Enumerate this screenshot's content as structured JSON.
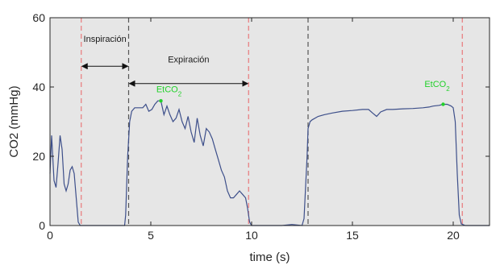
{
  "chart_data": {
    "type": "line",
    "xlabel": "time (s)",
    "ylabel": "CO2 (mmHg)",
    "xlim": [
      0,
      21.8
    ],
    "ylim": [
      0,
      60
    ],
    "xticks": [
      0,
      5,
      10,
      15,
      20
    ],
    "yticks": [
      0,
      20,
      40,
      60
    ],
    "grid": false,
    "background": "#e6e6e6",
    "colors": {
      "signal": "#3d4f8a",
      "red_marker": "#e8787a",
      "black_marker": "#555555",
      "etco2": "#22d12a",
      "annotation": "#111111"
    },
    "series": [
      {
        "x": [
          0.0,
          0.08,
          0.2,
          0.3,
          0.4,
          0.5,
          0.6,
          0.7,
          0.8,
          0.9,
          1.0,
          1.1,
          1.2,
          1.3,
          1.4,
          1.5,
          1.6,
          1.7,
          1.8,
          1.9,
          2.0,
          3.0,
          3.7,
          3.75,
          3.85,
          3.95,
          4.05,
          4.2,
          4.4,
          4.6,
          4.75,
          4.9,
          5.05,
          5.2,
          5.35,
          5.5,
          5.65,
          5.8,
          5.95,
          6.1,
          6.25,
          6.4,
          6.55,
          6.7,
          6.85,
          7.0,
          7.15,
          7.3,
          7.45,
          7.6,
          7.75,
          7.9,
          8.05,
          8.2,
          8.35,
          8.5,
          8.65,
          8.8,
          8.95,
          9.1,
          9.25,
          9.4,
          9.55,
          9.7,
          9.8,
          9.9,
          10.0,
          10.1,
          10.3,
          11.5,
          12.0,
          12.5,
          12.6,
          12.75,
          12.8,
          12.9,
          13.0,
          13.3,
          13.6,
          14.0,
          14.5,
          15.0,
          15.5,
          15.8,
          16.0,
          16.2,
          16.4,
          16.7,
          17.0,
          17.5,
          18.0,
          18.5,
          18.8,
          19.0,
          19.3,
          19.5,
          19.7,
          19.9,
          20.0,
          20.1,
          20.2,
          20.3,
          20.4,
          20.6,
          21.8
        ],
        "y": [
          15.0,
          26.0,
          13.0,
          11.0,
          18.0,
          26.0,
          22.0,
          12.0,
          10.0,
          12.0,
          16.0,
          17.0,
          15.0,
          8.0,
          1.0,
          0.0,
          0.0,
          0.0,
          0.0,
          0.0,
          0.0,
          0.0,
          0.0,
          3.0,
          20.0,
          30.0,
          33.0,
          34.0,
          34.0,
          34.0,
          35.0,
          33.0,
          33.5,
          35.0,
          36.0,
          36.0,
          32.0,
          34.5,
          32.0,
          30.0,
          31.0,
          33.5,
          30.0,
          28.0,
          31.5,
          27.0,
          24.0,
          31.0,
          26.0,
          23.0,
          28.0,
          27.0,
          25.0,
          22.0,
          19.0,
          16.0,
          14.0,
          10.0,
          8.0,
          8.0,
          9.0,
          10.0,
          9.0,
          8.0,
          5.0,
          1.0,
          0.0,
          0.0,
          0.0,
          0.0,
          0.3,
          0.0,
          2.0,
          20.0,
          28.0,
          30.0,
          30.5,
          31.5,
          32.0,
          32.5,
          33.0,
          33.2,
          33.5,
          33.5,
          32.5,
          31.5,
          32.8,
          33.5,
          33.5,
          33.7,
          33.8,
          34.0,
          34.2,
          34.5,
          34.7,
          35.0,
          35.0,
          34.5,
          34.0,
          30.0,
          15.0,
          3.0,
          0.5,
          0.0,
          0.0
        ]
      }
    ],
    "vlines": [
      {
        "x": 1.55,
        "style": "red_marker"
      },
      {
        "x": 3.9,
        "style": "black_marker"
      },
      {
        "x": 9.85,
        "style": "red_marker"
      },
      {
        "x": 12.8,
        "style": "black_marker"
      },
      {
        "x": 20.45,
        "style": "red_marker"
      }
    ],
    "annotations": {
      "inspiracion": {
        "text": "Inspiración",
        "x_start": 1.55,
        "x_end": 3.9,
        "text_y": 54,
        "arrow_y": 46
      },
      "expiracion": {
        "text": "Expiración",
        "x_start": 3.9,
        "x_end": 9.85,
        "text_y": 48,
        "arrow_y": 41
      },
      "etco2_points": [
        {
          "prefix": "EtCO",
          "sub": "2",
          "x": 5.5,
          "y": 36.0,
          "label_x": 5.9,
          "label_y": 38.5
        },
        {
          "prefix": "EtCO",
          "sub": "2",
          "x": 19.5,
          "y": 35.0,
          "label_x": 19.2,
          "label_y": 40.0
        }
      ]
    }
  }
}
